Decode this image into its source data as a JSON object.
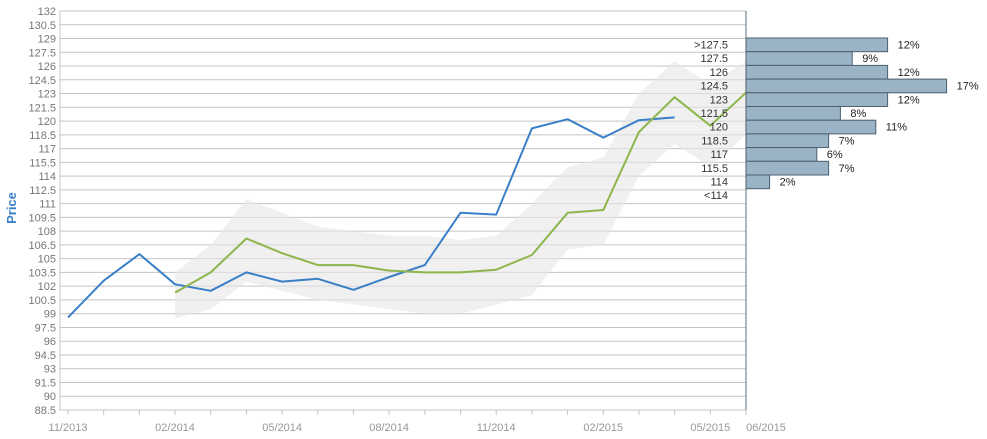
{
  "colors": {
    "grid": "#c4c4c4",
    "axis_text": "#777777",
    "price_line": "#3a7fc8",
    "forecast_line": "#8db54b",
    "band": "#e6e6e6",
    "histogram_fill": "#9ab3c5",
    "histogram_stroke": "#4a6070",
    "ylabel": "#3a7fc8"
  },
  "chart_data": [
    {
      "type": "line",
      "ylabel": "Price",
      "xlabel": "",
      "ylim": [
        88.5,
        132
      ],
      "xlim": [
        "2013-11",
        "2015-06"
      ],
      "grid": true,
      "x_ticks": [
        "11/2013",
        "02/2014",
        "05/2014",
        "08/2014",
        "11/2014",
        "02/2015",
        "05/2015",
        "06/2015"
      ],
      "y_ticks": [
        88.5,
        90,
        91.5,
        93,
        94.5,
        96,
        97.5,
        99,
        100.5,
        102,
        103.5,
        105,
        106.5,
        108,
        109.5,
        111,
        112.5,
        114,
        115.5,
        117,
        118.5,
        120,
        121.5,
        123,
        124.5,
        126,
        127.5,
        129,
        130.5,
        132
      ],
      "series": [
        {
          "color": "#3a7fc8",
          "points": [
            {
              "x": "2013-11",
              "y": 98.6
            },
            {
              "x": "2013-12",
              "y": 102.6
            },
            {
              "x": "2014-01",
              "y": 105.5
            },
            {
              "x": "2014-02",
              "y": 102.2
            },
            {
              "x": "2014-03",
              "y": 101.5
            },
            {
              "x": "2014-04",
              "y": 103.5
            },
            {
              "x": "2014-05",
              "y": 102.5
            },
            {
              "x": "2014-06",
              "y": 102.8
            },
            {
              "x": "2014-07",
              "y": 101.6
            },
            {
              "x": "2014-08",
              "y": 103.0
            },
            {
              "x": "2014-09",
              "y": 104.3
            },
            {
              "x": "2014-10",
              "y": 110.0
            },
            {
              "x": "2014-11",
              "y": 109.8
            },
            {
              "x": "2014-12",
              "y": 119.2
            },
            {
              "x": "2015-01",
              "y": 120.2
            },
            {
              "x": "2015-02",
              "y": 118.2
            },
            {
              "x": "2015-03",
              "y": 120.1
            },
            {
              "x": "2015-04",
              "y": 120.4
            }
          ]
        },
        {
          "color": "#8db54b",
          "points": [
            {
              "x": "2014-02",
              "y": 101.3
            },
            {
              "x": "2014-03",
              "y": 103.5
            },
            {
              "x": "2014-04",
              "y": 107.2
            },
            {
              "x": "2014-05",
              "y": 105.6
            },
            {
              "x": "2014-06",
              "y": 104.3
            },
            {
              "x": "2014-07",
              "y": 104.3
            },
            {
              "x": "2014-08",
              "y": 103.7
            },
            {
              "x": "2014-09",
              "y": 103.5
            },
            {
              "x": "2014-10",
              "y": 103.5
            },
            {
              "x": "2014-11",
              "y": 103.8
            },
            {
              "x": "2014-12",
              "y": 105.4
            },
            {
              "x": "2015-01",
              "y": 110.0
            },
            {
              "x": "2015-02",
              "y": 110.3
            },
            {
              "x": "2015-03",
              "y": 118.8
            },
            {
              "x": "2015-04",
              "y": 122.6
            },
            {
              "x": "2015-05",
              "y": 119.5
            },
            {
              "x": "2015-06",
              "y": 123.1
            }
          ]
        }
      ],
      "band": {
        "x": [
          "2014-02",
          "2014-03",
          "2014-04",
          "2014-05",
          "2014-06",
          "2014-07",
          "2014-08",
          "2014-09",
          "2014-10",
          "2014-11",
          "2014-12",
          "2015-01",
          "2015-02",
          "2015-03",
          "2015-04",
          "2015-05",
          "2015-06"
        ],
        "upper": [
          103.5,
          106.5,
          111.5,
          110.0,
          108.5,
          108.0,
          107.5,
          107.5,
          107.0,
          107.5,
          111.0,
          115.0,
          116.0,
          123.0,
          126.5,
          124.0,
          126.5
        ],
        "lower": [
          98.5,
          99.5,
          102.5,
          101.5,
          100.5,
          100.0,
          99.5,
          99.0,
          99.0,
          100.0,
          101.0,
          106.0,
          106.5,
          114.0,
          117.5,
          115.0,
          118.5
        ]
      }
    },
    {
      "type": "bar",
      "orientation": "horizontal",
      "categories": [
        ">127.5",
        "127.5",
        "126",
        "124.5",
        "123",
        "121.5",
        "120",
        "118.5",
        "117",
        "115.5",
        "114",
        "<114"
      ],
      "values": [
        12,
        9,
        12,
        17,
        12,
        8,
        11,
        7,
        6,
        7,
        2,
        0
      ],
      "data_labels": [
        "12%",
        "9%",
        "12%",
        "17%",
        "12%",
        "8%",
        "11%",
        "7%",
        "6%",
        "7%",
        "2%",
        ""
      ],
      "unit": "%"
    }
  ]
}
